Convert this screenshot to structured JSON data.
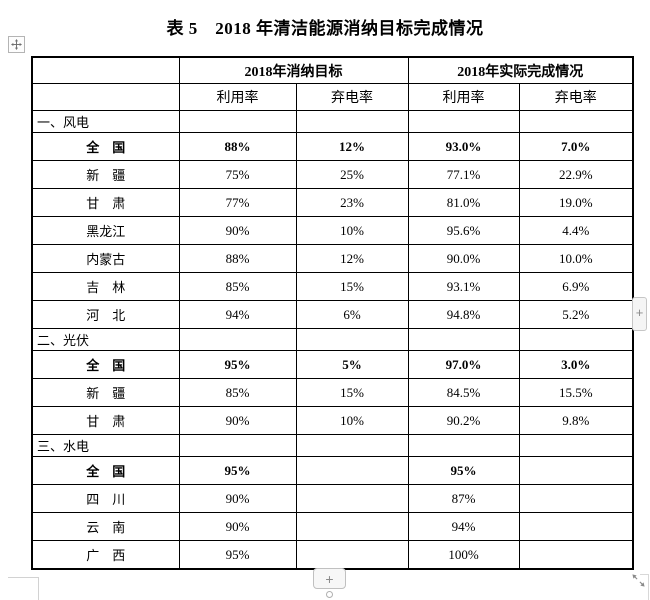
{
  "document": {
    "title": "表 5　2018 年清洁能源消纳目标完成情况"
  },
  "table": {
    "header_groups": [
      {
        "label": "",
        "span": 1
      },
      {
        "label": "2018年消纳目标",
        "span": 2
      },
      {
        "label": "2018年实际完成情况",
        "span": 2
      }
    ],
    "sub_headers": [
      "",
      "利用率",
      "弃电率",
      "利用率",
      "弃电率"
    ],
    "sections": [
      {
        "header": "一、风电",
        "rows": [
          {
            "region": "全　国",
            "bold": true,
            "values": [
              "88%",
              "12%",
              "93.0%",
              "7.0%"
            ]
          },
          {
            "region": "新　疆",
            "bold": false,
            "values": [
              "75%",
              "25%",
              "77.1%",
              "22.9%"
            ]
          },
          {
            "region": "甘　肃",
            "bold": false,
            "values": [
              "77%",
              "23%",
              "81.0%",
              "19.0%"
            ]
          },
          {
            "region": "黑龙江",
            "bold": false,
            "values": [
              "90%",
              "10%",
              "95.6%",
              "4.4%"
            ]
          },
          {
            "region": "内蒙古",
            "bold": false,
            "values": [
              "88%",
              "12%",
              "90.0%",
              "10.0%"
            ]
          },
          {
            "region": "吉　林",
            "bold": false,
            "values": [
              "85%",
              "15%",
              "93.1%",
              "6.9%"
            ]
          },
          {
            "region": "河　北",
            "bold": false,
            "values": [
              "94%",
              "6%",
              "94.8%",
              "5.2%"
            ]
          }
        ]
      },
      {
        "header": "二、光伏",
        "rows": [
          {
            "region": "全　国",
            "bold": true,
            "values": [
              "95%",
              "5%",
              "97.0%",
              "3.0%"
            ]
          },
          {
            "region": "新　疆",
            "bold": false,
            "values": [
              "85%",
              "15%",
              "84.5%",
              "15.5%"
            ]
          },
          {
            "region": "甘　肃",
            "bold": false,
            "values": [
              "90%",
              "10%",
              "90.2%",
              "9.8%"
            ]
          }
        ]
      },
      {
        "header": "三、水电",
        "rows": [
          {
            "region": "全　国",
            "bold": true,
            "values": [
              "95%",
              "",
              "95%",
              ""
            ]
          },
          {
            "region": "四　川",
            "bold": false,
            "values": [
              "90%",
              "",
              "87%",
              ""
            ]
          },
          {
            "region": "云　南",
            "bold": false,
            "values": [
              "90%",
              "",
              "94%",
              ""
            ]
          },
          {
            "region": "广　西",
            "bold": false,
            "values": [
              "95%",
              "",
              "100%",
              ""
            ]
          }
        ]
      }
    ]
  },
  "controls": {
    "add_row_button": "+",
    "add_column_button": "+"
  },
  "icons": {
    "move_handle": "move-icon",
    "resize_handle": "resize-diagonal-icon",
    "add_row": "plus-icon",
    "add_column": "plus-icon"
  },
  "colors": {
    "table_border": "#000000",
    "text": "#000000",
    "control_bg": "#f5f5f5",
    "control_border": "#c6c6c6",
    "control_glyph": "#8a8a8a"
  }
}
